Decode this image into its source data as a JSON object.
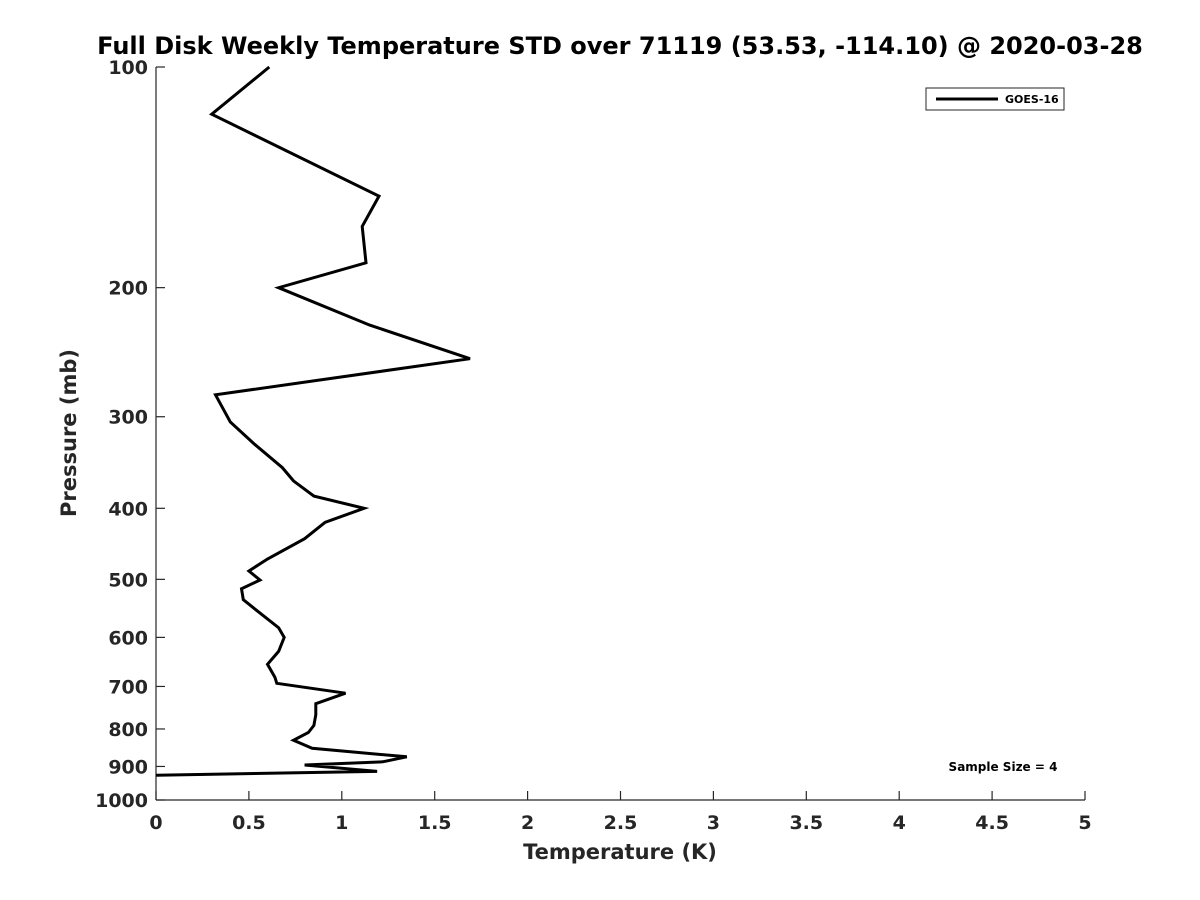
{
  "chart_data": {
    "type": "line",
    "title": "Full Disk Weekly Temperature STD over 71119 (53.53, -114.10) @ 2020-03-28",
    "xlabel": "Temperature (K)",
    "ylabel": "Pressure (mb)",
    "xlim": [
      0,
      5
    ],
    "ylim": [
      100,
      1000
    ],
    "yscale": "log",
    "y_reversed": true,
    "xticks": [
      "0",
      "0.5",
      "1",
      "1.5",
      "2",
      "2.5",
      "3",
      "3.5",
      "4",
      "4.5",
      "5"
    ],
    "yticks": [
      "100",
      "200",
      "300",
      "400",
      "500",
      "600",
      "700",
      "800",
      "900",
      "1000"
    ],
    "grid": false,
    "legend_position": "top-right",
    "series": [
      {
        "name": "GOES-16",
        "color": "#000000",
        "temperature": [
          0.61,
          0.3,
          1.2,
          1.11,
          1.13,
          0.66,
          1.15,
          1.69,
          0.32,
          0.4,
          0.53,
          0.68,
          0.74,
          0.85,
          1.12,
          0.91,
          0.8,
          0.6,
          0.5,
          0.56,
          0.46,
          0.47,
          0.56,
          0.66,
          0.69,
          0.66,
          0.6,
          0.64,
          0.65,
          1.02,
          0.86,
          0.86,
          0.85,
          0.82,
          0.74,
          0.84,
          1.35,
          1.22,
          0.8,
          1.19,
          0.0
        ],
        "pressure": [
          100,
          116,
          150,
          165,
          185,
          200,
          225,
          250,
          280,
          305,
          327,
          352,
          367,
          385,
          400,
          418,
          440,
          469,
          487,
          501,
          515,
          533,
          556,
          582,
          600,
          627,
          653,
          680,
          693,
          715,
          739,
          765,
          791,
          809,
          829,
          850,
          873,
          887,
          896,
          914,
          925
        ]
      }
    ],
    "annotation": "Sample Size = 4"
  }
}
